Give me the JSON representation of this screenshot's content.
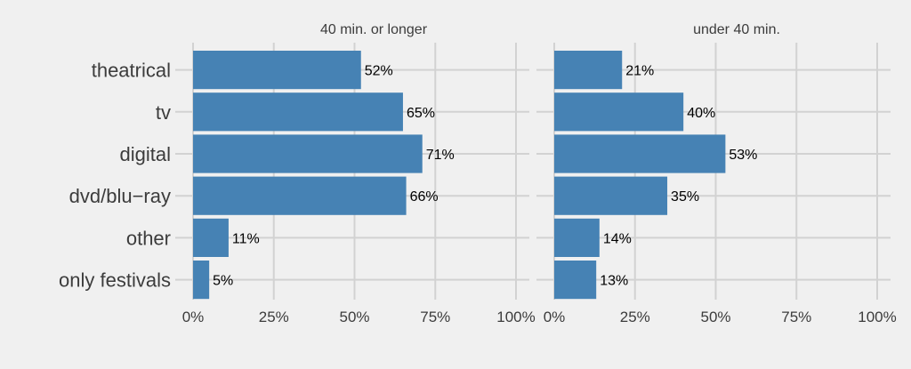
{
  "chart_data": {
    "type": "bar",
    "orientation": "horizontal",
    "categories": [
      "theatrical",
      "tv",
      "digital",
      "dvd/blu−ray",
      "other",
      "only festivals"
    ],
    "x_ticks": [
      "0%",
      "25%",
      "50%",
      "75%",
      "100%"
    ],
    "xlim": [
      0,
      100
    ],
    "value_suffix": "%",
    "grid": true,
    "bar_color": "#4682b4",
    "background_color": "#f0f0f0",
    "grid_color": "#d2d2d2",
    "panels": [
      {
        "title": "40 min. or longer",
        "values": [
          52,
          65,
          71,
          66,
          11,
          5
        ]
      },
      {
        "title": "under 40 min.",
        "values": [
          21,
          40,
          53,
          35,
          14,
          13
        ]
      }
    ]
  }
}
